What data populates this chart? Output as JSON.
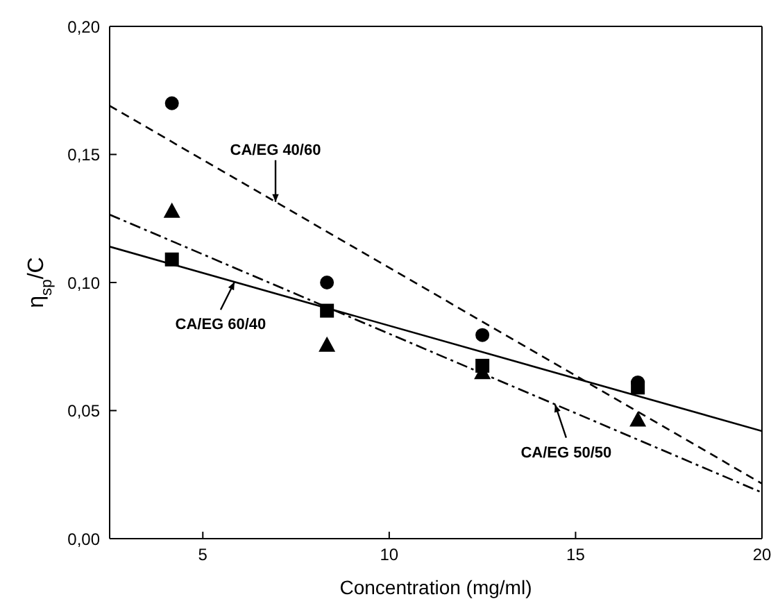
{
  "chart_data": {
    "type": "scatter",
    "xlabel": "Concentration (mg/ml)",
    "ylabel": "η$_{sp}$/C",
    "xlim": [
      2.5,
      20
    ],
    "xticks": [
      5,
      10,
      15,
      20
    ],
    "ylim": [
      0,
      0.2
    ],
    "yticks": [
      {
        "value": 0,
        "label": "0,00"
      },
      {
        "value": 0.05,
        "label": "0,05"
      },
      {
        "value": 0.1,
        "label": "0,10"
      },
      {
        "value": 0.15,
        "label": "0,15"
      },
      {
        "value": 0.2,
        "label": "0,20"
      }
    ],
    "grid": false,
    "legend": false,
    "series": [
      {
        "marker": "circle",
        "color": "#000000",
        "x": [
          4.17,
          8.33,
          12.5,
          16.67
        ],
        "values": [
          0.17,
          0.1,
          0.0795,
          0.061
        ]
      },
      {
        "marker": "square",
        "color": "#000000",
        "x": [
          4.17,
          8.33,
          12.5,
          16.67
        ],
        "values": [
          0.109,
          0.089,
          0.0675,
          0.059
        ]
      },
      {
        "marker": "triangle",
        "color": "#000000",
        "x": [
          4.17,
          8.33,
          12.5,
          16.67
        ],
        "values": [
          0.128,
          0.0757,
          0.065,
          0.0465
        ]
      },
      {
        "type": "line",
        "marker": "none",
        "line_style": "dashed",
        "color": "#000000",
        "x": [
          2.5,
          20
        ],
        "values": [
          0.169,
          0.0215
        ]
      },
      {
        "type": "line",
        "marker": "none",
        "line_style": "solid",
        "color": "#000000",
        "x": [
          2.5,
          20
        ],
        "values": [
          0.114,
          0.042
        ]
      },
      {
        "type": "line",
        "marker": "none",
        "line_style": "dotted",
        "color": "#000000",
        "x": [
          2.5,
          20
        ],
        "values": [
          0.1265,
          0.018
        ]
      }
    ],
    "annotations": [
      {
        "text": "CA/EG 40/60",
        "x": 6.95,
        "y": 0.1315
      },
      {
        "text": "CA/EG 60/40",
        "x": 5.85,
        "y": 0.1002
      },
      {
        "text": "CA/EG 50/50",
        "x": 14.45,
        "y": 0.0524
      }
    ]
  }
}
